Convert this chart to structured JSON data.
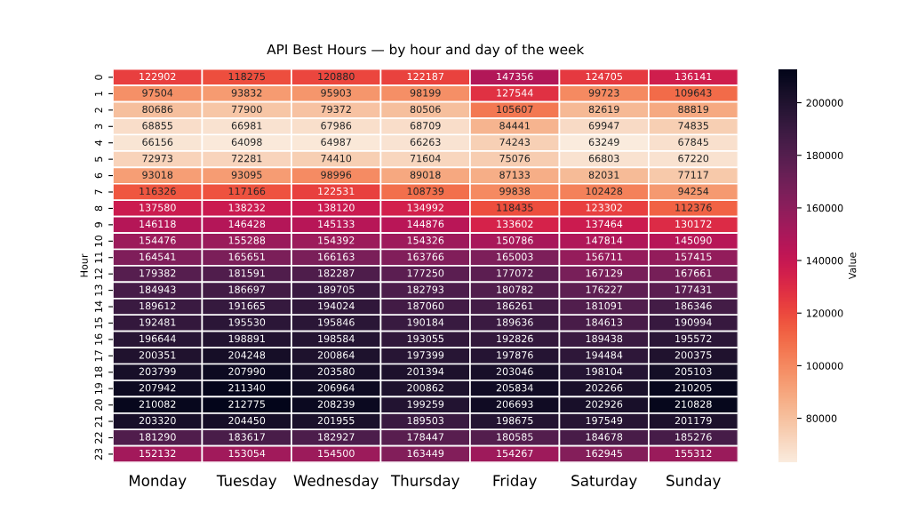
{
  "chart_data": {
    "type": "heatmap",
    "title": "API Best Hours — by hour and day of the week",
    "ylabel": "Hour",
    "clabel": "Value",
    "categories": [
      "Monday",
      "Tuesday",
      "Wednesday",
      "Thursday",
      "Friday",
      "Saturday",
      "Sunday"
    ],
    "y_categories": [
      "0",
      "1",
      "2",
      "3",
      "4",
      "5",
      "6",
      "7",
      "8",
      "9",
      "10",
      "11",
      "12",
      "13",
      "14",
      "15",
      "16",
      "17",
      "18",
      "19",
      "20",
      "21",
      "22",
      "23"
    ],
    "cells": [
      [
        122902,
        118275,
        120880,
        122187,
        147356,
        124705,
        136141
      ],
      [
        97504,
        93832,
        95903,
        98199,
        127544,
        99723,
        109643
      ],
      [
        80686,
        77900,
        79372,
        80506,
        105607,
        82619,
        88819
      ],
      [
        68855,
        66981,
        67986,
        68709,
        84441,
        69947,
        74835
      ],
      [
        66156,
        64098,
        64987,
        66263,
        74243,
        63249,
        67845
      ],
      [
        72973,
        72281,
        74410,
        71604,
        75076,
        66803,
        67220
      ],
      [
        93018,
        93095,
        98996,
        89018,
        87133,
        82031,
        77117
      ],
      [
        116326,
        117166,
        122531,
        108739,
        99838,
        102428,
        94254
      ],
      [
        137580,
        138232,
        138120,
        134992,
        118435,
        123302,
        112376
      ],
      [
        146118,
        146428,
        145133,
        144876,
        133602,
        137464,
        130172
      ],
      [
        154476,
        155288,
        154392,
        154326,
        150786,
        147814,
        145090
      ],
      [
        164541,
        165651,
        166163,
        163766,
        165003,
        156711,
        157415
      ],
      [
        179382,
        181591,
        182287,
        177250,
        177072,
        167129,
        167661
      ],
      [
        184943,
        186697,
        189705,
        182793,
        180782,
        176227,
        177431
      ],
      [
        189612,
        191665,
        194024,
        187060,
        186261,
        181091,
        186346
      ],
      [
        192481,
        195530,
        195846,
        190184,
        189636,
        184613,
        190994
      ],
      [
        196644,
        198891,
        198584,
        193055,
        192826,
        189438,
        195572
      ],
      [
        200351,
        204248,
        200864,
        197399,
        197876,
        194484,
        200375
      ],
      [
        203799,
        207990,
        203580,
        201394,
        203046,
        198104,
        205103
      ],
      [
        207942,
        211340,
        206964,
        200862,
        205834,
        202266,
        210205
      ],
      [
        210082,
        212775,
        208239,
        199259,
        206693,
        202926,
        210828
      ],
      [
        203320,
        204450,
        201955,
        189503,
        198675,
        197549,
        201179
      ],
      [
        181290,
        183617,
        182927,
        178447,
        180585,
        184678,
        185276
      ],
      [
        152132,
        153054,
        154500,
        163449,
        154267,
        162945,
        155312
      ]
    ],
    "clim": [
      63249,
      212775
    ],
    "cticks": [
      80000,
      100000,
      120000,
      140000,
      160000,
      180000,
      200000
    ],
    "data_labels": true
  }
}
